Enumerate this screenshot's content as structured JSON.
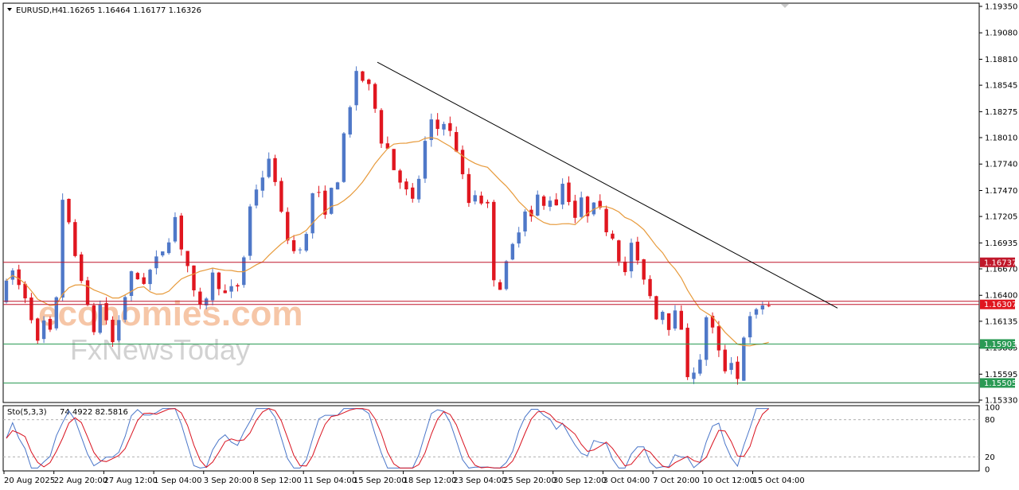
{
  "header": {
    "symbol": "EURUSD,H4",
    "ohlc": "1.16265 1.16464 1.16177 1.16326"
  },
  "indicator": {
    "title": "Sto(5,3,3)",
    "values": "74.4922 82.5816",
    "levels": [
      100,
      80,
      20,
      0
    ],
    "level_labels": [
      "100",
      "80",
      "20",
      "0"
    ]
  },
  "watermark": {
    "line1": "economies.com",
    "line2": "FxNewsToday"
  },
  "colors": {
    "bull": "#4f78c8",
    "bear": "#e0161f",
    "ma": "#e79a3b",
    "resistance": "#c0172a",
    "support": "#2a9a54",
    "trendline": "#000000",
    "stoch_main": "#4a76c9",
    "stoch_signal": "#d9121f"
  },
  "chart_data": {
    "type": "candlestick",
    "symbol": "EURUSD",
    "timeframe": "H4",
    "ylim": [
      1.1533,
      1.1935
    ],
    "y_ticks": [
      "1.19350",
      "1.19080",
      "1.18810",
      "1.18545",
      "1.18275",
      "1.18010",
      "1.17740",
      "1.17470",
      "1.17205",
      "1.16935",
      "1.16670",
      "1.16400",
      "1.16135",
      "1.15865",
      "1.15595",
      "1.15330"
    ],
    "x_ticks": [
      "20 Aug 2025",
      "22 Aug 20:00",
      "27 Aug 12:00",
      "1 Sep 04:00",
      "3 Sep 20:00",
      "8 Sep 12:00",
      "11 Sep 04:00",
      "15 Sep 20:00",
      "18 Sep 12:00",
      "23 Sep 04:00",
      "25 Sep 20:00",
      "30 Sep 12:00",
      "3 Oct 04:00",
      "7 Oct 20:00",
      "10 Oct 12:00",
      "15 Oct 04:00"
    ],
    "horizontal_levels": [
      {
        "value": 1.16737,
        "label": "1.16737",
        "type": "resistance"
      },
      {
        "value": 1.16307,
        "label": "1.16307",
        "type": "current"
      },
      {
        "value": 1.15903,
        "label": "1.15903",
        "type": "support"
      },
      {
        "value": 1.15505,
        "label": "1.15505",
        "type": "support"
      }
    ],
    "trendline": {
      "from": {
        "x": "15 Sep 20:00",
        "y": 1.1878
      },
      "to": {
        "x": "15 Oct 16:00",
        "y": 1.1627
      }
    },
    "price_path": [
      [
        0,
        1.1635
      ],
      [
        2,
        1.1665
      ],
      [
        3,
        1.165
      ],
      [
        4,
        1.164
      ],
      [
        5,
        1.162
      ],
      [
        6,
        1.159
      ],
      [
        7,
        1.1612
      ],
      [
        8,
        1.16
      ],
      [
        9,
        1.164
      ],
      [
        10,
        1.174
      ],
      [
        11,
        1.171
      ],
      [
        12,
        1.168
      ],
      [
        13,
        1.166
      ],
      [
        14,
        1.1625
      ],
      [
        15,
        1.1605
      ],
      [
        16,
        1.163
      ],
      [
        17,
        1.1615
      ],
      [
        18,
        1.1592
      ],
      [
        20,
        1.164
      ],
      [
        21,
        1.166
      ],
      [
        23,
        1.1655
      ],
      [
        25,
        1.1675
      ],
      [
        27,
        1.17
      ],
      [
        28,
        1.172
      ],
      [
        29,
        1.169
      ],
      [
        30,
        1.167
      ],
      [
        31,
        1.164
      ],
      [
        32,
        1.1625
      ],
      [
        33,
        1.164
      ],
      [
        34,
        1.166
      ],
      [
        35,
        1.1652
      ],
      [
        36,
        1.164
      ],
      [
        38,
        1.165
      ],
      [
        39,
        1.168
      ],
      [
        40,
        1.173
      ],
      [
        41,
        1.175
      ],
      [
        43,
        1.1775
      ],
      [
        44,
        1.176
      ],
      [
        45,
        1.172
      ],
      [
        46,
        1.17
      ],
      [
        47,
        1.1685
      ],
      [
        49,
        1.17
      ],
      [
        50,
        1.1745
      ],
      [
        51,
        1.174
      ],
      [
        52,
        1.1728
      ],
      [
        53,
        1.1745
      ],
      [
        54,
        1.176
      ],
      [
        55,
        1.18
      ],
      [
        56,
        1.183
      ],
      [
        57,
        1.187
      ],
      [
        58,
        1.186
      ],
      [
        59,
        1.185
      ],
      [
        60,
        1.1835
      ],
      [
        61,
        1.18
      ],
      [
        62,
        1.179
      ],
      [
        63,
        1.177
      ],
      [
        64,
        1.176
      ],
      [
        65,
        1.1745
      ],
      [
        66,
        1.1735
      ],
      [
        67,
        1.176
      ],
      [
        68,
        1.1795
      ],
      [
        69,
        1.1815
      ],
      [
        70,
        1.181
      ],
      [
        71,
        1.182
      ],
      [
        72,
        1.1805
      ],
      [
        73,
        1.179
      ],
      [
        74,
        1.176
      ],
      [
        75,
        1.1735
      ],
      [
        76,
        1.1745
      ],
      [
        78,
        1.173
      ],
      [
        79,
        1.166
      ],
      [
        80,
        1.165
      ],
      [
        81,
        1.167
      ],
      [
        82,
        1.169
      ],
      [
        83,
        1.171
      ],
      [
        84,
        1.173
      ],
      [
        85,
        1.172
      ],
      [
        86,
        1.174
      ],
      [
        87,
        1.173
      ],
      [
        88,
        1.174
      ],
      [
        89,
        1.1735
      ],
      [
        90,
        1.1755
      ],
      [
        91,
        1.174
      ],
      [
        92,
        1.172
      ],
      [
        93,
        1.1735
      ],
      [
        94,
        1.1725
      ],
      [
        95,
        1.174
      ],
      [
        96,
        1.1725
      ],
      [
        97,
        1.171
      ],
      [
        98,
        1.17
      ],
      [
        99,
        1.168
      ],
      [
        100,
        1.166
      ],
      [
        101,
        1.1695
      ],
      [
        102,
        1.167
      ],
      [
        103,
        1.166
      ],
      [
        104,
        1.164
      ],
      [
        105,
        1.162
      ],
      [
        106,
        1.1625
      ],
      [
        107,
        1.161
      ],
      [
        108,
        1.163
      ],
      [
        109,
        1.16
      ],
      [
        110,
        1.156
      ],
      [
        111,
        1.1565
      ],
      [
        112,
        1.157
      ],
      [
        113,
        1.162
      ],
      [
        114,
        1.1605
      ],
      [
        115,
        1.158
      ],
      [
        116,
        1.1565
      ],
      [
        117,
        1.1575
      ],
      [
        118,
        1.1555
      ],
      [
        119,
        1.16
      ],
      [
        120,
        1.1615
      ],
      [
        121,
        1.1622
      ],
      [
        122,
        1.1631
      ]
    ]
  }
}
